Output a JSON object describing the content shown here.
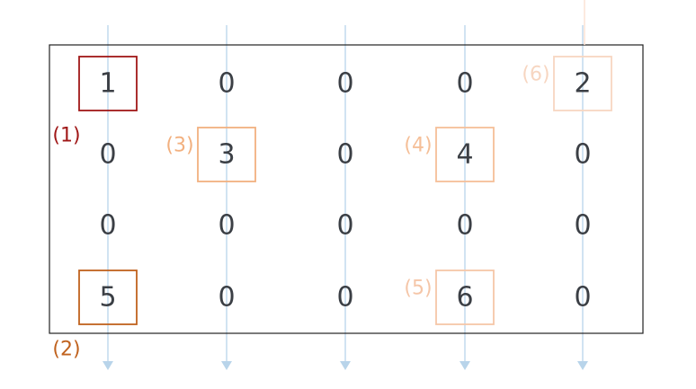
{
  "matrix": {
    "rows": [
      [
        "1",
        "0",
        "0",
        "0",
        "2"
      ],
      [
        "0",
        "3",
        "0",
        "4",
        "0"
      ],
      [
        "0",
        "0",
        "0",
        "0",
        "0"
      ],
      [
        "5",
        "0",
        "0",
        "6",
        "0"
      ]
    ]
  },
  "highlights": [
    {
      "row": 0,
      "col": 0,
      "label": "(1)",
      "label_side": "below-left",
      "color": "#a01818"
    },
    {
      "row": 3,
      "col": 0,
      "label": "(2)",
      "label_side": "below-left",
      "color": "#c0621e"
    },
    {
      "row": 1,
      "col": 1,
      "label": "(3)",
      "label_side": "left",
      "color": "#f2b07f"
    },
    {
      "row": 1,
      "col": 3,
      "label": "(4)",
      "label_side": "left",
      "color": "#f5bf98"
    },
    {
      "row": 3,
      "col": 3,
      "label": "(5)",
      "label_side": "left",
      "color": "#f5c6a8"
    },
    {
      "row": 0,
      "col": 4,
      "label": "(6)",
      "label_side": "left",
      "color": "#f7d6c1"
    }
  ],
  "colors": {
    "column_arrow": "#b8d4ea",
    "frame": "#222222",
    "digit": "#3b3f45"
  }
}
